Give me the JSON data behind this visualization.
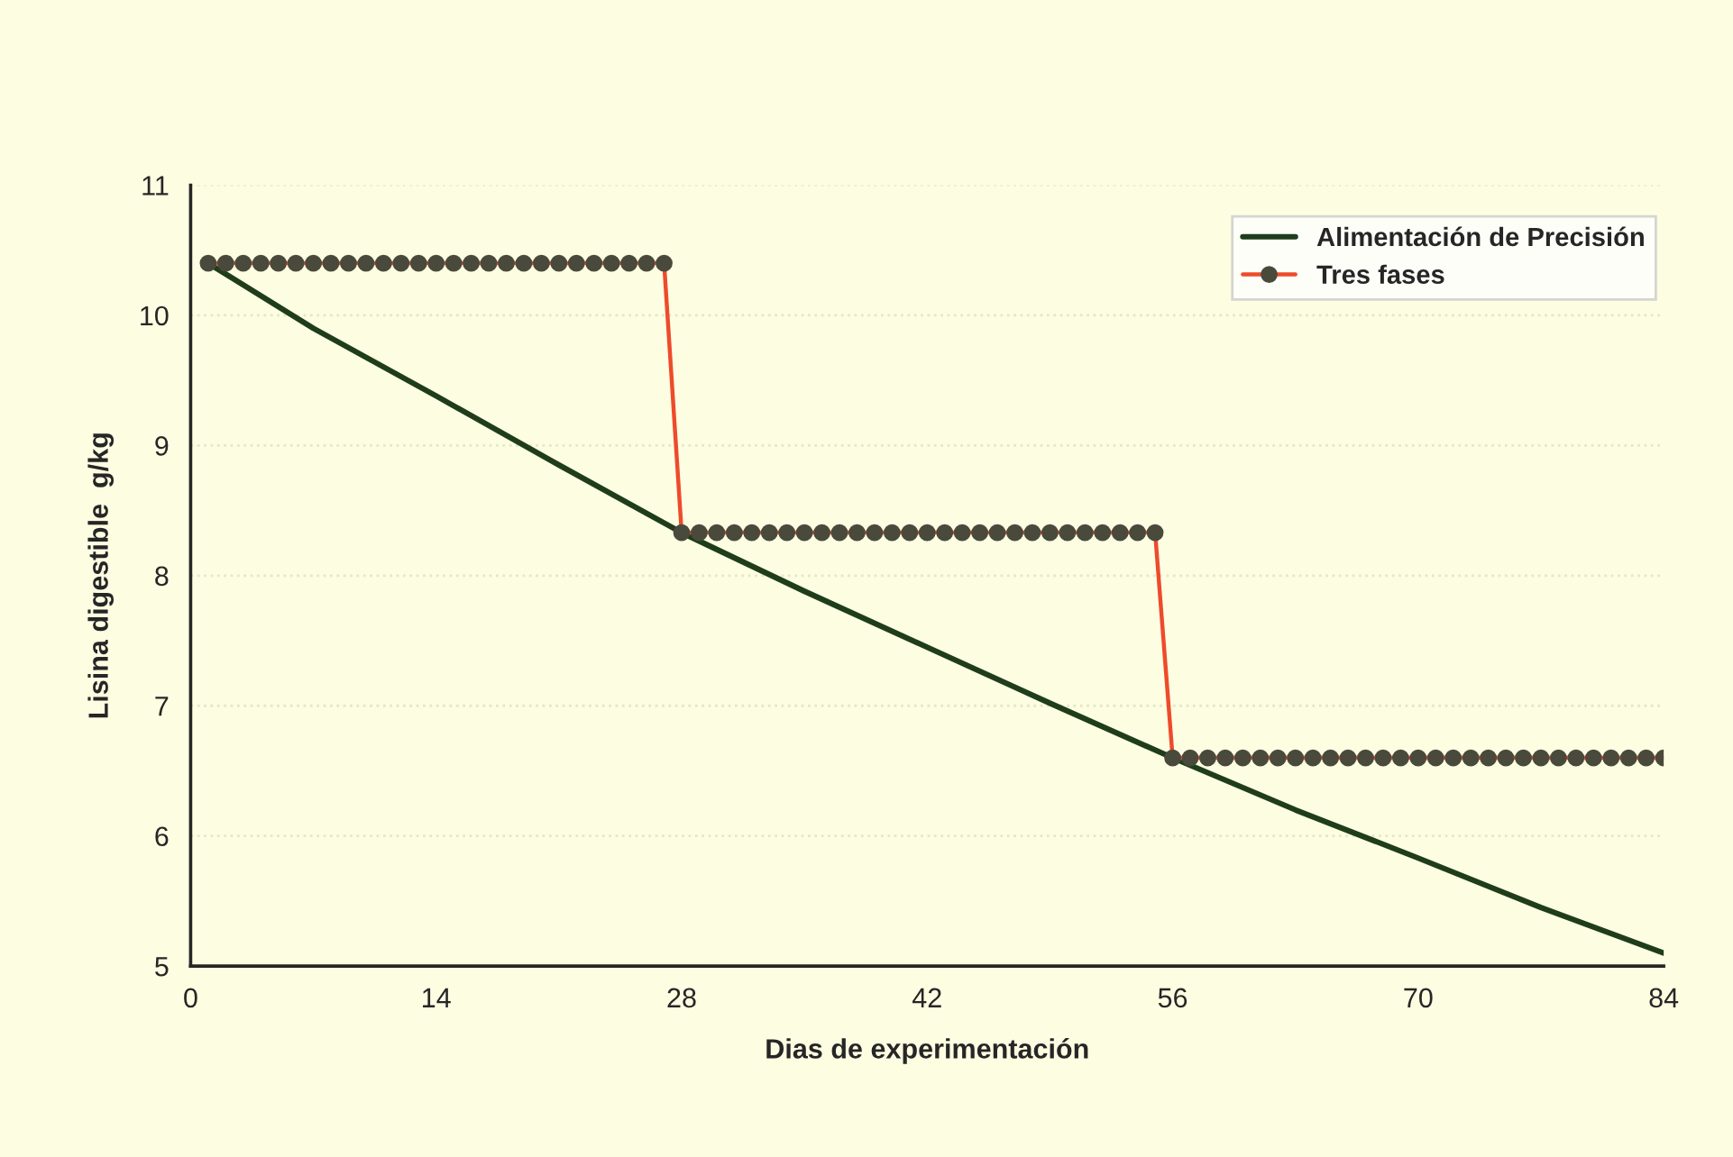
{
  "chart_data": {
    "type": "line",
    "xlabel": "Dias de experimentación",
    "ylabel": "Lisina digestible  g/kg",
    "xlim": [
      0,
      84
    ],
    "xticks": [
      0,
      14,
      28,
      42,
      56,
      70,
      84
    ],
    "ylim": [
      5,
      11
    ],
    "yticks": [
      5,
      6,
      7,
      8,
      9,
      10,
      11
    ],
    "grid": "y",
    "legend": "top right",
    "series": [
      {
        "name": "Alimentación de Precisión",
        "color": "#1f3d1a",
        "marker": "none",
        "x": [
          1,
          7,
          14,
          21,
          28,
          35,
          42,
          49,
          56,
          63,
          70,
          77,
          84
        ],
        "values": [
          10.4,
          9.9,
          9.38,
          8.85,
          8.33,
          7.88,
          7.45,
          7.02,
          6.6,
          6.2,
          5.83,
          5.45,
          5.1
        ]
      },
      {
        "name": "Tres fases",
        "color": "#ee4b2b",
        "marker": "circle",
        "x": [
          1,
          2,
          3,
          4,
          5,
          6,
          7,
          8,
          9,
          10,
          11,
          12,
          13,
          14,
          15,
          16,
          17,
          18,
          19,
          20,
          21,
          22,
          23,
          24,
          25,
          26,
          27,
          28,
          29,
          30,
          31,
          32,
          33,
          34,
          35,
          36,
          37,
          38,
          39,
          40,
          41,
          42,
          43,
          44,
          45,
          46,
          47,
          48,
          49,
          50,
          51,
          52,
          53,
          54,
          55,
          56,
          57,
          58,
          59,
          60,
          61,
          62,
          63,
          64,
          65,
          66,
          67,
          68,
          69,
          70,
          71,
          72,
          73,
          74,
          75,
          76,
          77,
          78,
          79,
          80,
          81,
          82,
          83,
          84
        ],
        "values": [
          10.4,
          10.4,
          10.4,
          10.4,
          10.4,
          10.4,
          10.4,
          10.4,
          10.4,
          10.4,
          10.4,
          10.4,
          10.4,
          10.4,
          10.4,
          10.4,
          10.4,
          10.4,
          10.4,
          10.4,
          10.4,
          10.4,
          10.4,
          10.4,
          10.4,
          10.4,
          10.4,
          8.33,
          8.33,
          8.33,
          8.33,
          8.33,
          8.33,
          8.33,
          8.33,
          8.33,
          8.33,
          8.33,
          8.33,
          8.33,
          8.33,
          8.33,
          8.33,
          8.33,
          8.33,
          8.33,
          8.33,
          8.33,
          8.33,
          8.33,
          8.33,
          8.33,
          8.33,
          8.33,
          8.33,
          6.6,
          6.6,
          6.6,
          6.6,
          6.6,
          6.6,
          6.6,
          6.6,
          6.6,
          6.6,
          6.6,
          6.6,
          6.6,
          6.6,
          6.6,
          6.6,
          6.6,
          6.6,
          6.6,
          6.6,
          6.6,
          6.6,
          6.6,
          6.6,
          6.6,
          6.6,
          6.6,
          6.6,
          6.6
        ]
      }
    ]
  }
}
